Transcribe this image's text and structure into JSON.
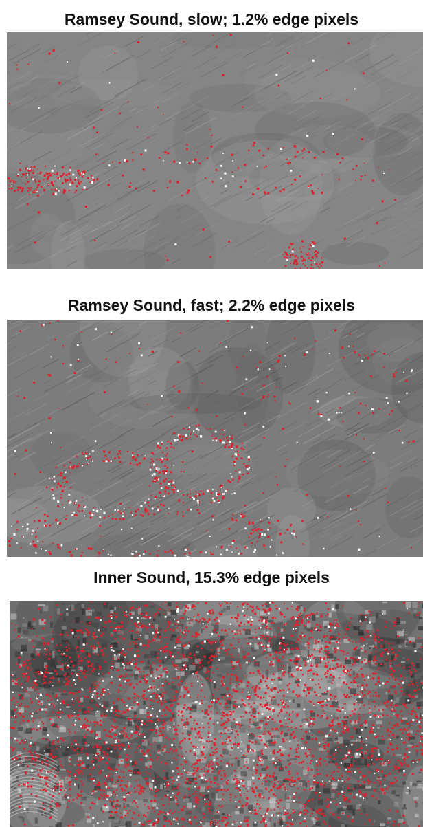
{
  "panels": [
    {
      "title": "Ramsey Sound, slow; 1.2% edge pixels",
      "edge_pixel_fraction": 0.012,
      "base_gray": "#858585",
      "dark_gray": "#5e5e5e",
      "light_gray": "#a4a4a4",
      "streak_texture": true
    },
    {
      "title": "Ramsey Sound, fast; 2.2% edge pixels",
      "edge_pixel_fraction": 0.022,
      "base_gray": "#7c7c7c",
      "dark_gray": "#505050",
      "light_gray": "#a8a8a8",
      "streak_texture": true
    },
    {
      "title": "Inner Sound, 15.3% edge pixels",
      "edge_pixel_fraction": 0.153,
      "base_gray": "#6e6e6e",
      "dark_gray": "#262626",
      "light_gray": "#d0d0d0",
      "streak_texture": false
    }
  ],
  "edge_color": "#e0202a",
  "highlight_color": "#ffffff"
}
